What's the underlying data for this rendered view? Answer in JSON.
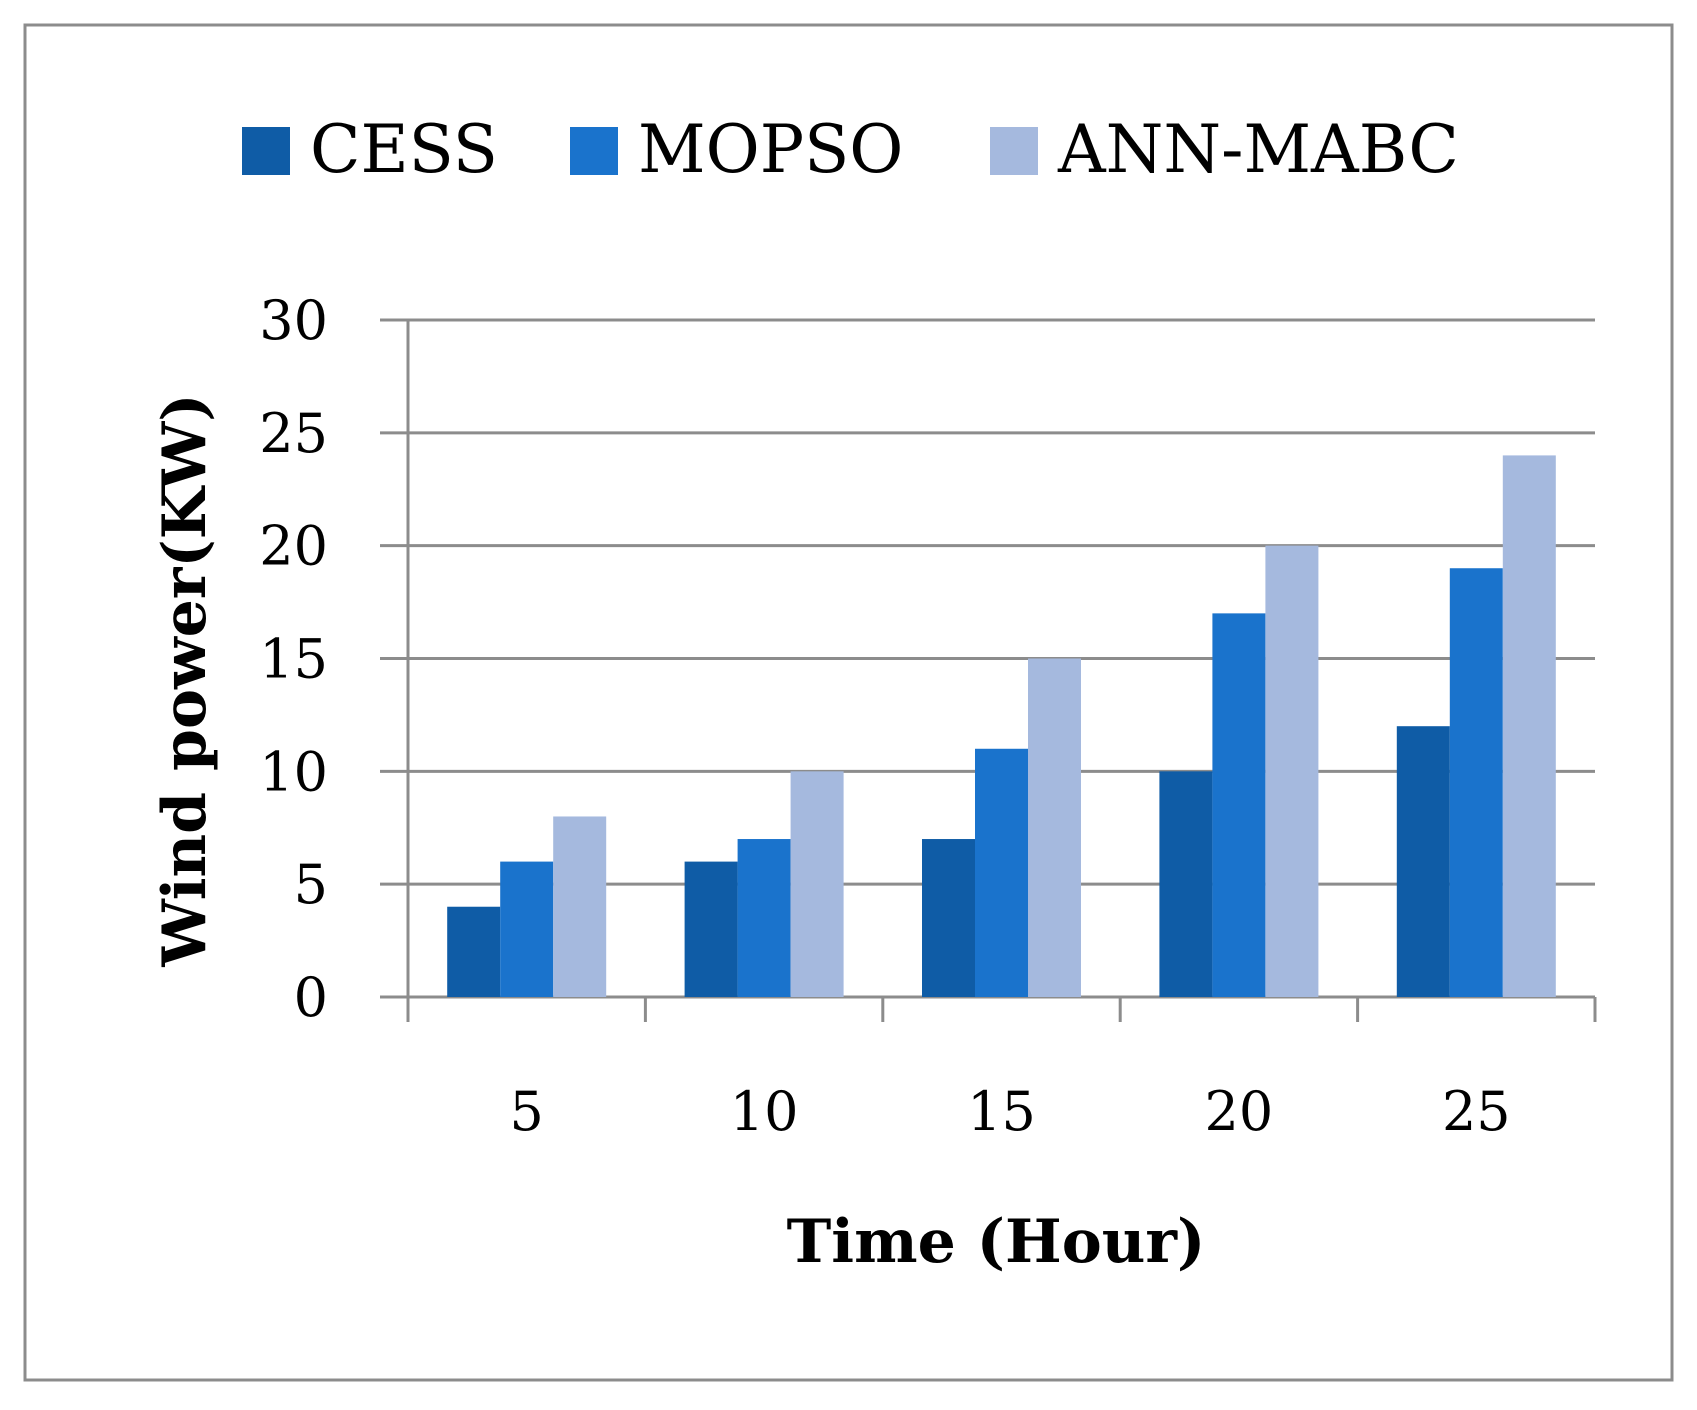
{
  "chart_data": {
    "type": "bar",
    "title": "",
    "xlabel": "Time (Hour)",
    "ylabel": "Wind power(KW)",
    "categories": [
      "5",
      "10",
      "15",
      "20",
      "25"
    ],
    "series": [
      {
        "name": "CESS",
        "values": [
          4,
          6,
          7,
          10,
          12
        ],
        "color": "#0f5ca6"
      },
      {
        "name": "MOPSO",
        "values": [
          6,
          7,
          11,
          17,
          19
        ],
        "color": "#1a73cc"
      },
      {
        "name": "ANN-MABC",
        "values": [
          8,
          10,
          15,
          20,
          24
        ],
        "color": "#a5b9de"
      }
    ],
    "ylim": [
      0,
      30
    ],
    "yticks": [
      "0",
      "5",
      "10",
      "15",
      "20",
      "25",
      "30"
    ],
    "grid": true,
    "legend_position": "top"
  },
  "colors": {
    "gridline": "#8c8c8c",
    "frame": "#8c8c8c"
  }
}
